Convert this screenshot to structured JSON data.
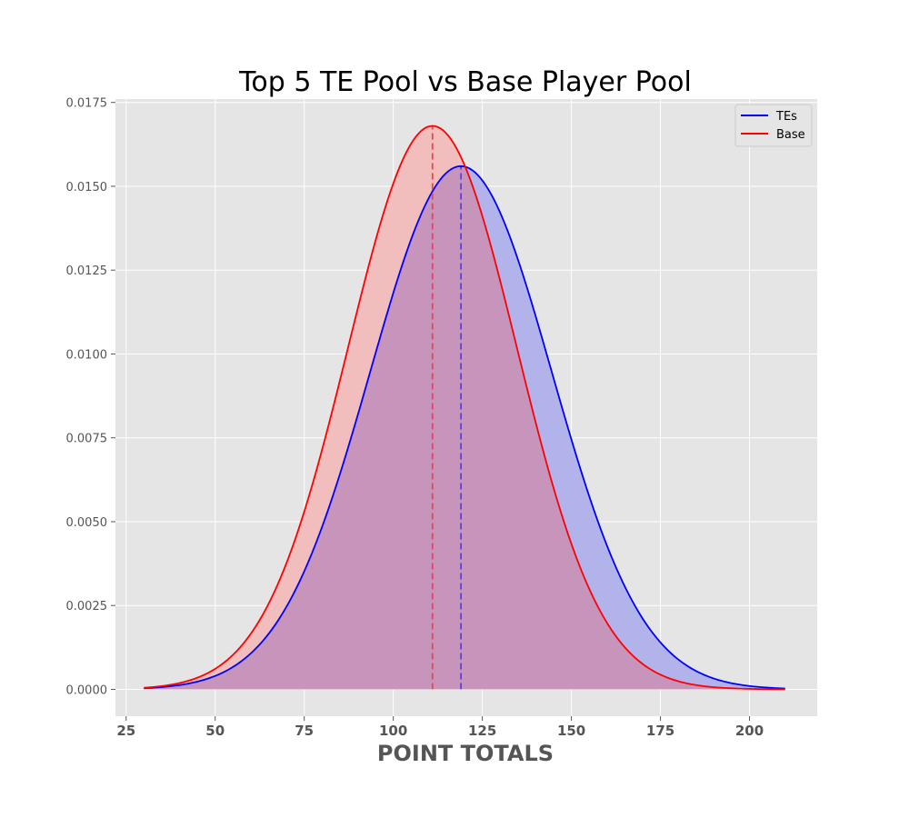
{
  "chart_data": {
    "type": "line",
    "title": "Top 5 TE Pool vs Base Player Pool",
    "xlabel": "POINT TOTALS",
    "ylabel": "",
    "xlim": [
      22,
      219
    ],
    "ylim": [
      -0.0008,
      0.0176
    ],
    "xticks": [
      25,
      50,
      75,
      100,
      125,
      150,
      175,
      200
    ],
    "xtick_labels": [
      "25",
      "50",
      "75",
      "100",
      "125",
      "150",
      "175",
      "200"
    ],
    "yticks": [
      0,
      0.0025,
      0.005,
      0.0075,
      0.01,
      0.0125,
      0.015,
      0.0175
    ],
    "ytick_labels": [
      "0.0000",
      "0.0025",
      "0.0050",
      "0.0075",
      "0.0100",
      "0.0125",
      "0.0150",
      "0.0175"
    ],
    "grid": true,
    "legend_position": "top-right",
    "curve_type": "normal density",
    "x_range": [
      30,
      210
    ],
    "series": [
      {
        "name": "TEs",
        "mean": 119,
        "std": 25.5,
        "peak": 0.0156,
        "color": "#0000ff",
        "fill": "#b3b3eb",
        "mean_line_color": "#5b3fe6"
      },
      {
        "name": "Base",
        "mean": 111,
        "std": 23.7,
        "peak": 0.0168,
        "color": "#ff0000",
        "fill": "#f2bdbd",
        "mean_line_color": "#e8474a"
      }
    ],
    "overlap_fill": "#c794bc",
    "background": "#e5e5e5"
  }
}
